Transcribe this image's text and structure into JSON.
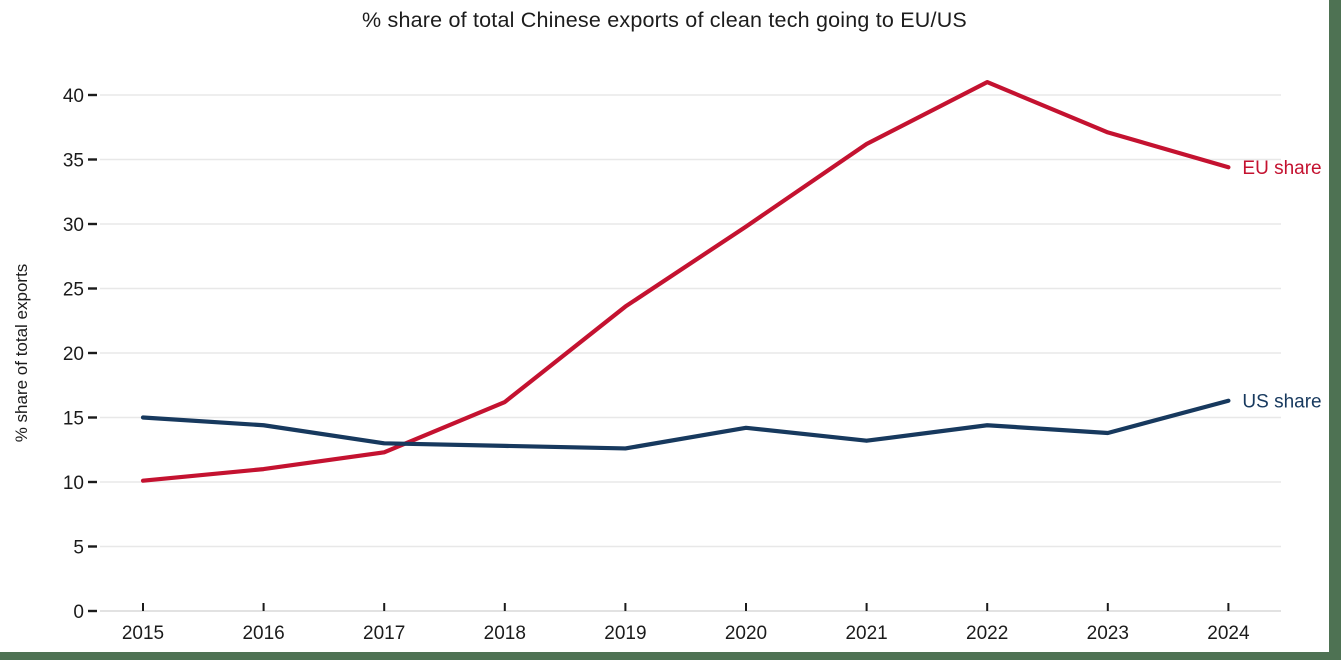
{
  "frame": {
    "card_background": "#ffffff",
    "page_background": "#4e7253"
  },
  "chart_data": {
    "type": "line",
    "title": "% share of total Chinese exports of clean tech going to EU/US",
    "xlabel": "",
    "ylabel": "% share of total exports",
    "categories": [
      "2015",
      "2016",
      "2017",
      "2018",
      "2019",
      "2020",
      "2021",
      "2022",
      "2023",
      "2024"
    ],
    "series": [
      {
        "name": "EU share",
        "color": "#c41230",
        "values": [
          10.1,
          11.0,
          12.3,
          16.2,
          23.6,
          29.8,
          36.2,
          41.0,
          37.1,
          34.4
        ]
      },
      {
        "name": "US share",
        "color": "#17395e",
        "values": [
          15.0,
          14.4,
          13.0,
          12.8,
          12.6,
          14.2,
          13.2,
          14.4,
          13.8,
          16.3
        ]
      }
    ],
    "ylim": [
      0,
      42.5
    ],
    "y_ticks": [
      0,
      5,
      10,
      15,
      20,
      25,
      30,
      35,
      40
    ],
    "grid": "horizontal-only",
    "grid_color": "#e8e8e8",
    "zero_line_color": "#d8d8d8",
    "tick_color": "#1b1b1b",
    "text_color": "#1b1b1b",
    "legend_position": "line-end-labels"
  }
}
